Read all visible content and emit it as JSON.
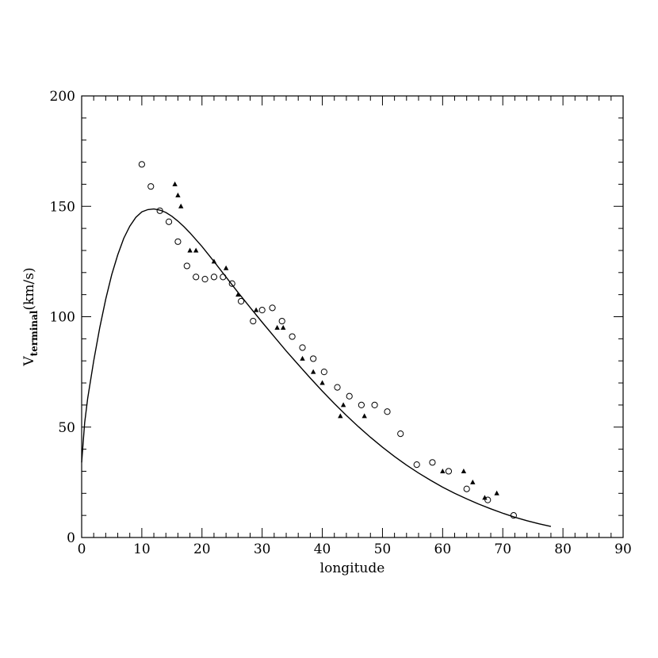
{
  "chart_data": {
    "type": "scatter",
    "xlabel": "longitude",
    "ylabel": {
      "main": "V",
      "subscript": "terminal",
      "units": "(km/s)"
    },
    "xlim": [
      0,
      90
    ],
    "ylim": [
      0,
      200
    ],
    "x_ticks": [
      0,
      10,
      20,
      30,
      40,
      50,
      60,
      70,
      80,
      90
    ],
    "y_ticks": [
      0,
      50,
      100,
      150,
      200
    ],
    "grid": false,
    "series": [
      {
        "marker": "circle",
        "points": [
          [
            10.0,
            169
          ],
          [
            11.5,
            159
          ],
          [
            13.0,
            148
          ],
          [
            14.5,
            143
          ],
          [
            16.0,
            134
          ],
          [
            17.5,
            123
          ],
          [
            19.0,
            118
          ],
          [
            20.5,
            117
          ],
          [
            22.0,
            118
          ],
          [
            23.5,
            118
          ],
          [
            25.0,
            115
          ],
          [
            26.5,
            107
          ],
          [
            28.5,
            98
          ],
          [
            30.0,
            103
          ],
          [
            31.7,
            104
          ],
          [
            33.3,
            98
          ],
          [
            35.0,
            91
          ],
          [
            36.7,
            86
          ],
          [
            38.5,
            81
          ],
          [
            40.3,
            75
          ],
          [
            42.5,
            68
          ],
          [
            44.5,
            64
          ],
          [
            46.5,
            60
          ],
          [
            48.7,
            60
          ],
          [
            50.8,
            57
          ],
          [
            53.0,
            47
          ],
          [
            55.7,
            33
          ],
          [
            58.3,
            34
          ],
          [
            61.0,
            30
          ],
          [
            64.0,
            22
          ],
          [
            67.5,
            17
          ],
          [
            71.8,
            10
          ]
        ]
      },
      {
        "marker": "triangle",
        "points": [
          [
            15.5,
            160
          ],
          [
            16.0,
            155
          ],
          [
            16.5,
            150
          ],
          [
            18.0,
            130
          ],
          [
            19.0,
            130
          ],
          [
            22.0,
            125
          ],
          [
            24.0,
            122
          ],
          [
            26.0,
            110
          ],
          [
            29.0,
            103
          ],
          [
            32.5,
            95
          ],
          [
            33.5,
            95
          ],
          [
            36.7,
            81
          ],
          [
            38.5,
            75
          ],
          [
            40.0,
            70
          ],
          [
            43.0,
            55
          ],
          [
            43.5,
            60
          ],
          [
            47.0,
            55
          ],
          [
            60.0,
            30
          ],
          [
            63.5,
            30
          ],
          [
            65.0,
            25
          ],
          [
            67.0,
            18
          ],
          [
            69.0,
            20
          ]
        ]
      },
      {
        "marker": "line",
        "points": [
          [
            0,
            34
          ],
          [
            0.5,
            52
          ],
          [
            1,
            63
          ],
          [
            2,
            80
          ],
          [
            3,
            95
          ],
          [
            4,
            108
          ],
          [
            5,
            119
          ],
          [
            6,
            128
          ],
          [
            7,
            135.5
          ],
          [
            8,
            141
          ],
          [
            9,
            145
          ],
          [
            10,
            147.5
          ],
          [
            11,
            148.5
          ],
          [
            12,
            148.8
          ],
          [
            13,
            148.3
          ],
          [
            14,
            147.2
          ],
          [
            15,
            145.5
          ],
          [
            16,
            143.3
          ],
          [
            17,
            140.8
          ],
          [
            18,
            138
          ],
          [
            20,
            131.8
          ],
          [
            22,
            125
          ],
          [
            24,
            118
          ],
          [
            26,
            111
          ],
          [
            28,
            104.2
          ],
          [
            30,
            97.5
          ],
          [
            32,
            91
          ],
          [
            34,
            84.5
          ],
          [
            36,
            78.3
          ],
          [
            38,
            72.2
          ],
          [
            40,
            66.3
          ],
          [
            42,
            60.7
          ],
          [
            44,
            55.3
          ],
          [
            46,
            50.2
          ],
          [
            48,
            45.4
          ],
          [
            50,
            40.9
          ],
          [
            52,
            36.7
          ],
          [
            54,
            32.8
          ],
          [
            56,
            29.2
          ],
          [
            58,
            25.9
          ],
          [
            60,
            22.8
          ],
          [
            62,
            20
          ],
          [
            64,
            17.5
          ],
          [
            66,
            15.1
          ],
          [
            68,
            13
          ],
          [
            70,
            11
          ],
          [
            72,
            9.2
          ],
          [
            74,
            7.6
          ],
          [
            76,
            6.2
          ],
          [
            78,
            5
          ]
        ]
      }
    ]
  }
}
